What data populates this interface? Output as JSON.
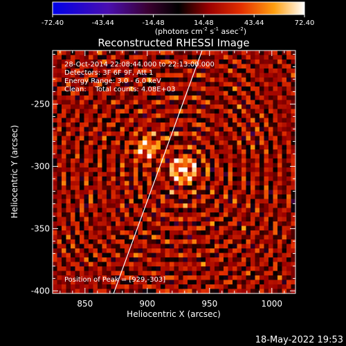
{
  "chart_data": {
    "type": "heatmap",
    "title": "Reconstructed RHESSI Image",
    "xlabel": "Heliocentric X (arcsec)",
    "ylabel": "Heliocentric Y (arcsec)",
    "x_ticks": [
      850,
      900,
      950,
      1000
    ],
    "y_ticks": [
      -250,
      -300,
      -350,
      -400
    ],
    "xlim": [
      824,
      1019
    ],
    "ylim": [
      -402,
      -207
    ],
    "colorbar": {
      "ticks": [
        "-72.40",
        "-43.44",
        "-14.48",
        "14.48",
        "43.44",
        "72.40"
      ],
      "range": [
        -72.4,
        72.4
      ],
      "units_base": "(photons cm",
      "units_exp1": "-2",
      "units_mid1": " s",
      "units_exp2": "-1",
      "units_mid2": " asec",
      "units_exp3": "-2",
      "units_end": ")"
    },
    "info": {
      "time": "28-Oct-2014 22:08:44.000 to 22:13:00.000",
      "detectors": "Detectors: 3F 6F 9F, Att 1",
      "energy": "Energy Range: 3.0 - 6.0 keV",
      "clean": "Clean:    Total counts: 4.08E+03"
    },
    "peak": {
      "x": 929,
      "y": -303,
      "label": "Position of Peak = [929,-303]"
    },
    "limb": [
      [
        873,
        -402
      ],
      [
        944,
        -207
      ]
    ],
    "grid": false
  },
  "footer": {
    "timestamp": "18-May-2022 19:53"
  }
}
